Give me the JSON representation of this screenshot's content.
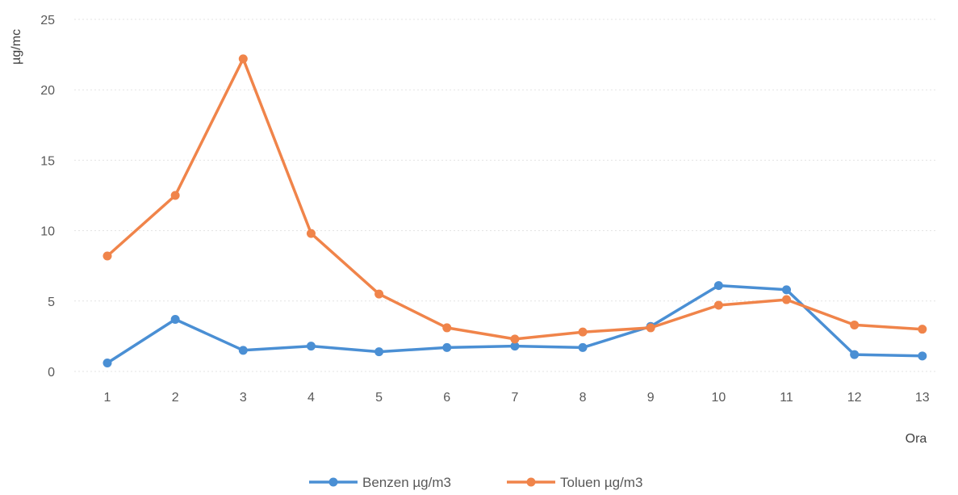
{
  "chart_data": {
    "type": "line",
    "title": "",
    "xlabel": "Ora",
    "ylabel": "µg/mc",
    "categories": [
      "1",
      "2",
      "3",
      "4",
      "5",
      "6",
      "7",
      "8",
      "9",
      "10",
      "11",
      "12",
      "13"
    ],
    "yticks": [
      "0",
      "5",
      "10",
      "15",
      "20",
      "25"
    ],
    "ylim": [
      0,
      25
    ],
    "grid": true,
    "legend_position": "bottom",
    "series": [
      {
        "name": "Benzen µg/m3",
        "color": "#4a8fd4",
        "values": [
          0.6,
          3.7,
          1.5,
          1.8,
          1.4,
          1.7,
          1.8,
          1.7,
          3.2,
          6.1,
          5.8,
          1.2,
          1.1
        ]
      },
      {
        "name": "Toluen µg/m3",
        "color": "#f0844a",
        "values": [
          8.2,
          12.5,
          22.2,
          9.8,
          5.5,
          3.1,
          2.3,
          2.8,
          3.1,
          4.7,
          5.1,
          3.3,
          3.0
        ]
      }
    ]
  }
}
